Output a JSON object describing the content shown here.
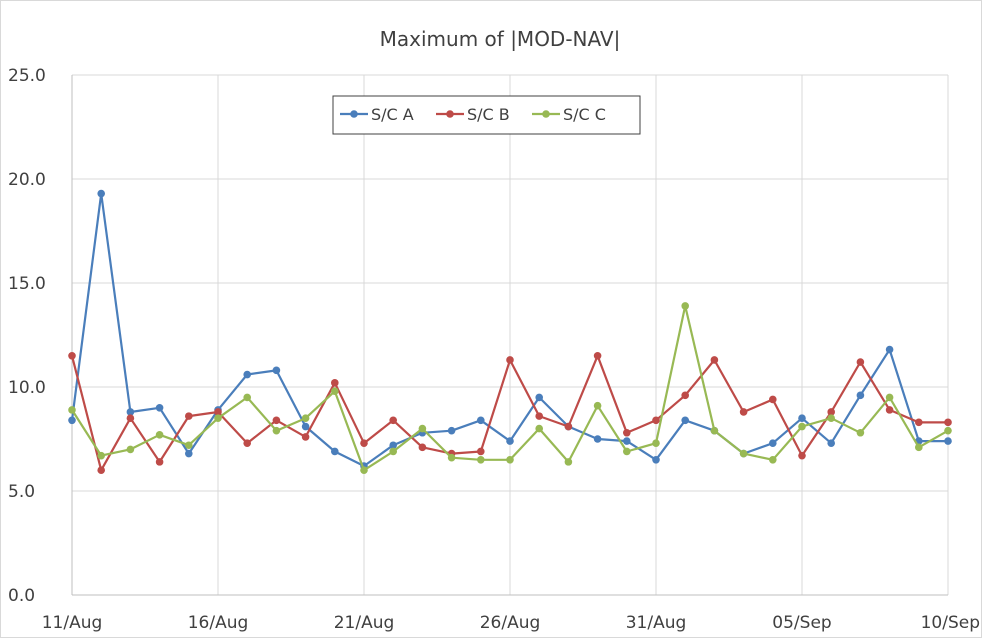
{
  "chart_data": {
    "type": "line",
    "title": "Maximum  of |MOD-NAV|",
    "xlabel": "",
    "ylabel": "",
    "ylim": [
      0,
      25
    ],
    "y_ticks": [
      "0.0",
      "5.0",
      "10.0",
      "15.0",
      "20.0",
      "25.0"
    ],
    "x_tick_labels": [
      "11/Aug",
      "16/Aug",
      "21/Aug",
      "26/Aug",
      "31/Aug",
      "05/Sep",
      "10/Sep"
    ],
    "x": [
      "11/Aug",
      "12/Aug",
      "13/Aug",
      "14/Aug",
      "15/Aug",
      "16/Aug",
      "17/Aug",
      "18/Aug",
      "19/Aug",
      "20/Aug",
      "21/Aug",
      "22/Aug",
      "23/Aug",
      "24/Aug",
      "25/Aug",
      "26/Aug",
      "27/Aug",
      "28/Aug",
      "29/Aug",
      "30/Aug",
      "31/Aug",
      "01/Sep",
      "02/Sep",
      "03/Sep",
      "04/Sep",
      "05/Sep",
      "06/Sep",
      "07/Sep",
      "08/Sep",
      "09/Sep",
      "10/Sep"
    ],
    "grid": "vertical and horizontal",
    "legend_position": "top-center",
    "series": [
      {
        "name": "S/C A",
        "color": "#4a7ebb",
        "values": [
          8.4,
          19.3,
          8.8,
          9.0,
          6.8,
          8.9,
          10.6,
          10.8,
          8.1,
          6.9,
          6.2,
          7.2,
          7.8,
          7.9,
          8.4,
          7.4,
          9.5,
          8.1,
          7.5,
          7.4,
          6.5,
          8.4,
          7.9,
          6.8,
          7.3,
          8.5,
          7.3,
          9.6,
          11.8,
          7.4,
          7.4
        ]
      },
      {
        "name": "S/C B",
        "color": "#be4b48",
        "values": [
          11.5,
          6.0,
          8.5,
          6.4,
          8.6,
          8.8,
          7.3,
          8.4,
          7.6,
          10.2,
          7.3,
          8.4,
          7.1,
          6.8,
          6.9,
          11.3,
          8.6,
          8.1,
          11.5,
          7.8,
          8.4,
          9.6,
          11.3,
          8.8,
          9.4,
          6.7,
          8.8,
          11.2,
          8.9,
          8.3,
          8.3
        ]
      },
      {
        "name": "S/C C",
        "color": "#98b954",
        "values": [
          8.9,
          6.7,
          7.0,
          7.7,
          7.2,
          8.5,
          9.5,
          7.9,
          8.5,
          9.8,
          6.0,
          6.9,
          8.0,
          6.6,
          6.5,
          6.5,
          8.0,
          6.4,
          9.1,
          6.9,
          7.3,
          13.9,
          7.9,
          6.8,
          6.5,
          8.1,
          8.5,
          7.8,
          9.5,
          7.1,
          7.9
        ]
      }
    ]
  }
}
